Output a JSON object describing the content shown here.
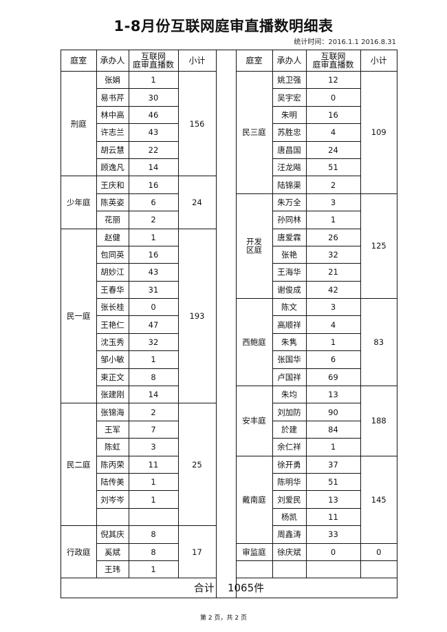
{
  "title": "1-8月份互联网庭审直播数明细表",
  "stat_time": "统计时间：2016.1.1 2016.8.31",
  "headers": {
    "court": "庭室",
    "judge": "承办人",
    "count": "互联网\n庭审直播数",
    "subtotal": "小计"
  },
  "left": [
    {
      "court": "刑庭",
      "subtotal": "156",
      "people": [
        [
          "张娟",
          "1"
        ],
        [
          "易书芹",
          "30"
        ],
        [
          "林中高",
          "46"
        ],
        [
          "许志兰",
          "43"
        ],
        [
          "胡云慧",
          "22"
        ],
        [
          "顾逸凡",
          "14"
        ]
      ]
    },
    {
      "court": "少年庭",
      "subtotal": "24",
      "people": [
        [
          "王庆和",
          "16"
        ],
        [
          "陈英姿",
          "6"
        ],
        [
          "花丽",
          "2"
        ]
      ]
    },
    {
      "court": "民一庭",
      "subtotal": "193",
      "people": [
        [
          "赵健",
          "1"
        ],
        [
          "包同英",
          "16"
        ],
        [
          "胡妙江",
          "43"
        ],
        [
          "王春华",
          "31"
        ],
        [
          "张长桂",
          "0"
        ],
        [
          "王艳仁",
          "47"
        ],
        [
          "沈玉秀",
          "32"
        ],
        [
          "邹小敏",
          "1"
        ],
        [
          "束正文",
          "8"
        ],
        [
          "张建刚",
          "14"
        ]
      ]
    },
    {
      "court": "民二庭",
      "subtotal": "25",
      "people": [
        [
          "张锦海",
          "2"
        ],
        [
          "王军",
          "7"
        ],
        [
          "陈虹",
          "3"
        ],
        [
          "陈丙荣",
          "11"
        ],
        [
          "陆传美",
          "1"
        ],
        [
          "刘岑岑",
          "1"
        ],
        [
          "",
          ""
        ]
      ]
    },
    {
      "court": "行政庭",
      "subtotal": "17",
      "people": [
        [
          "倪其庆",
          "8"
        ],
        [
          "奚斌",
          "8"
        ],
        [
          "王玮",
          "1"
        ]
      ]
    }
  ],
  "right": [
    {
      "court": "民三庭",
      "subtotal": "109",
      "people": [
        [
          "姚卫强",
          "12"
        ],
        [
          "吴宇宏",
          "0"
        ],
        [
          "朱明",
          "16"
        ],
        [
          "苏胜忠",
          "4"
        ],
        [
          "唐昌国",
          "24"
        ],
        [
          "汪龙飚",
          "51"
        ],
        [
          "陆锦渠",
          "2"
        ]
      ]
    },
    {
      "court": "开发\n区庭",
      "subtotal": "125",
      "people": [
        [
          "朱万全",
          "3"
        ],
        [
          "孙同林",
          "1"
        ],
        [
          "唐爱霖",
          "26"
        ],
        [
          "张艳",
          "32"
        ],
        [
          "王海华",
          "21"
        ],
        [
          "谢俊成",
          "42"
        ]
      ]
    },
    {
      "court": "西鲍庭",
      "subtotal": "83",
      "people": [
        [
          "陈文",
          "3"
        ],
        [
          "高顺祥",
          "4"
        ],
        [
          "朱隽",
          "1"
        ],
        [
          "张国华",
          "6"
        ],
        [
          "卢国祥",
          "69"
        ]
      ]
    },
    {
      "court": "安丰庭",
      "subtotal": "188",
      "people": [
        [
          "朱均",
          "13"
        ],
        [
          "刘加防",
          "90"
        ],
        [
          "於建",
          "84"
        ],
        [
          "余仁祥",
          "1"
        ]
      ]
    },
    {
      "court": "戴南庭",
      "subtotal": "145",
      "people": [
        [
          "徐开勇",
          "37"
        ],
        [
          "陈明华",
          "51"
        ],
        [
          "刘爱民",
          "13"
        ],
        [
          "杨凯",
          "11"
        ],
        [
          "周鑫涛",
          "33"
        ]
      ]
    },
    {
      "court": "审监庭",
      "subtotal": "0",
      "people": [
        [
          "徐庆斌",
          "0"
        ]
      ]
    },
    {
      "court": "",
      "subtotal": "",
      "people": [
        [
          "",
          ""
        ]
      ]
    }
  ],
  "total": "合计    1065件",
  "footer": "第 2 页，共 2 页"
}
